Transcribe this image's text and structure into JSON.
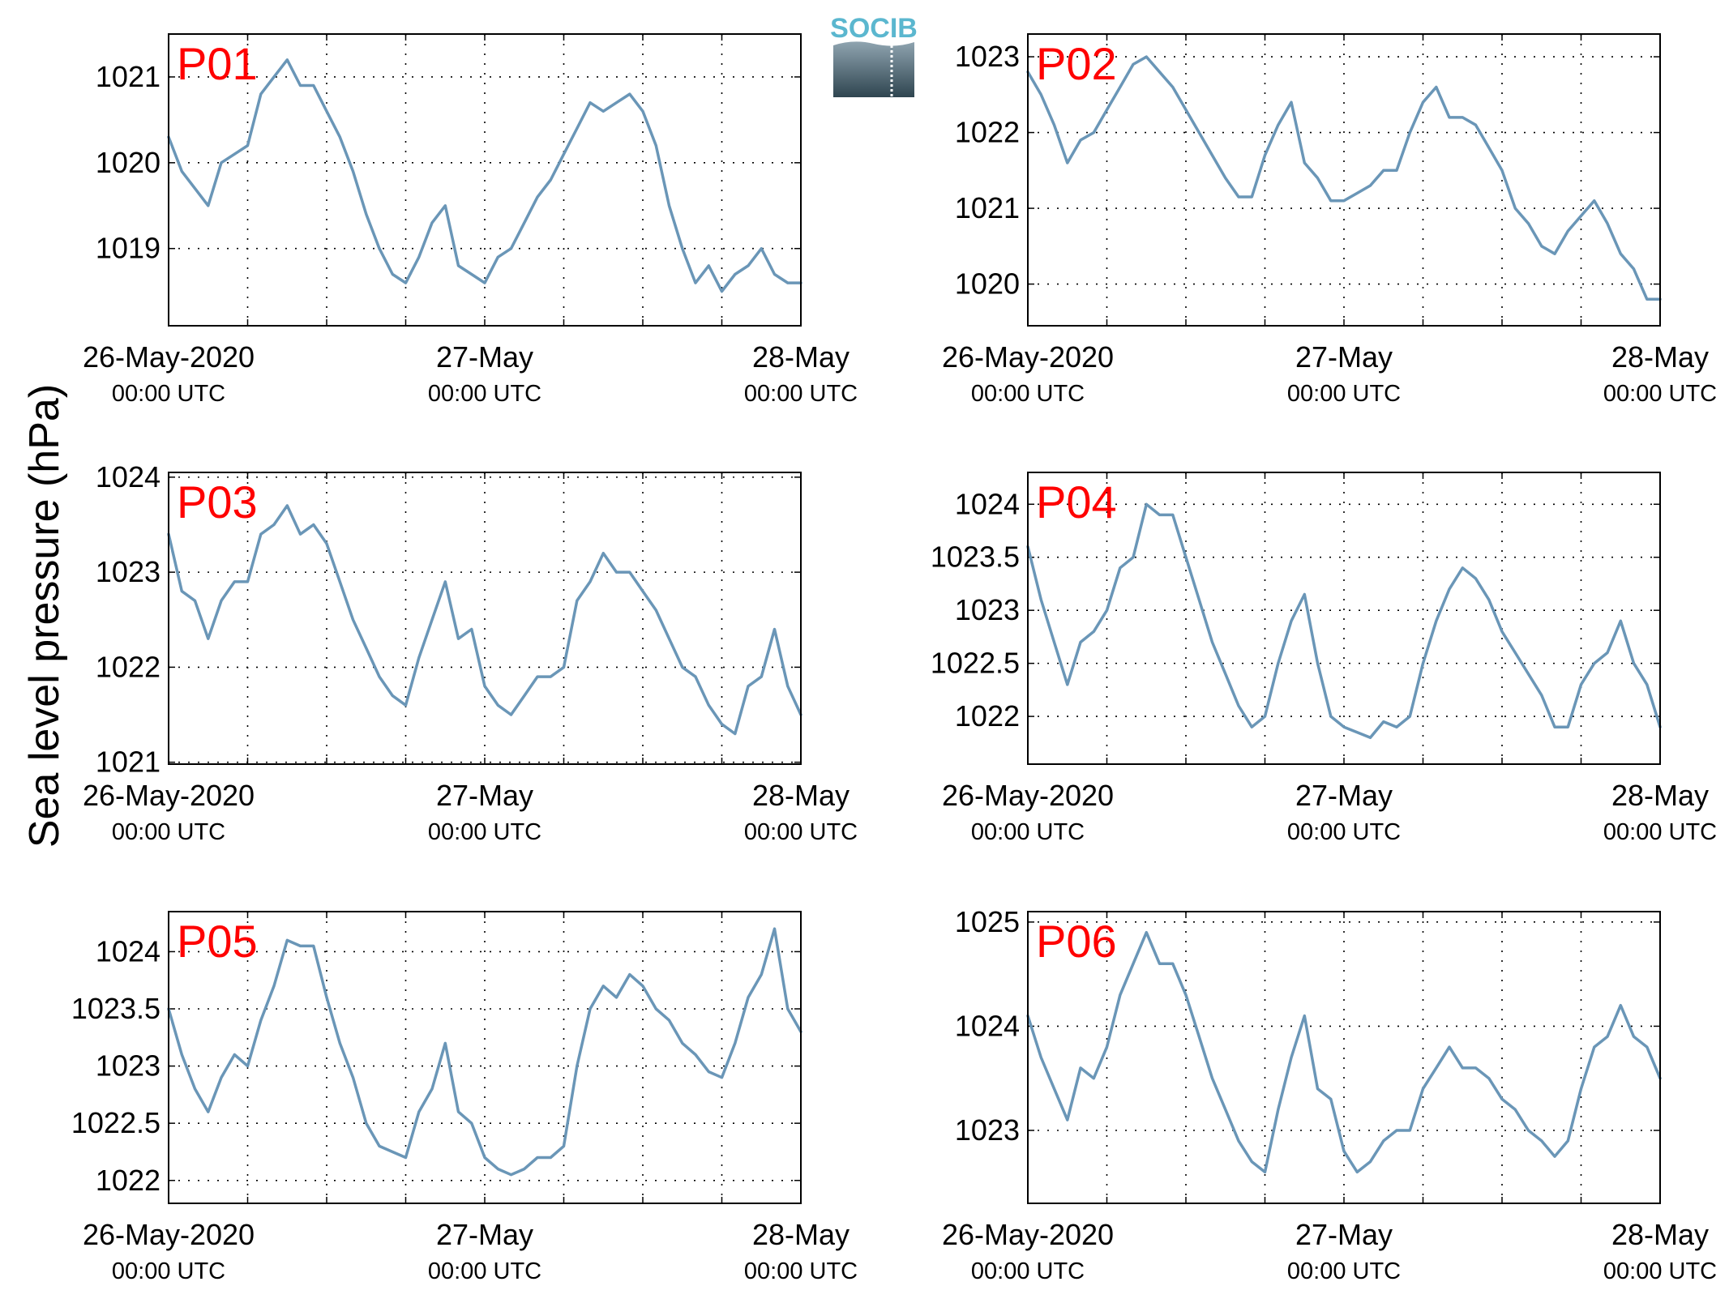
{
  "figure": {
    "ylabel": "Sea level pressure (hPa)",
    "logo": {
      "text": "SOCIB",
      "top_color": "#8fa4b0",
      "bottom_color": "#2f4550",
      "text_color": "#5bb7cf"
    },
    "line_color": "#6a96b7",
    "label_color": "#ff0000"
  },
  "chart_data": [
    {
      "type": "line",
      "label": "P01",
      "x_ticks": [
        {
          "date": "26-May-2020",
          "time": "00:00 UTC"
        },
        {
          "date": "27-May",
          "time": "00:00 UTC"
        },
        {
          "date": "28-May",
          "time": "00:00 UTC"
        }
      ],
      "xlim_hours": [
        0,
        48
      ],
      "ylim": [
        1018.1,
        1021.5
      ],
      "yticks": [
        "1019",
        "1020",
        "1021"
      ],
      "ytick_values": [
        1019,
        1020,
        1021
      ],
      "grid": true,
      "x_hours": [
        0,
        1,
        2,
        3,
        4,
        5,
        6,
        7,
        8,
        9,
        10,
        11,
        12,
        13,
        14,
        15,
        16,
        17,
        18,
        19,
        20,
        21,
        22,
        23,
        24,
        25,
        26,
        27,
        28,
        29,
        30,
        31,
        32,
        33,
        34,
        35,
        36,
        37,
        38,
        39,
        40,
        41,
        42,
        43,
        44,
        45,
        46,
        47,
        48
      ],
      "values": [
        1020.3,
        1019.9,
        1019.7,
        1019.5,
        1020.0,
        1020.1,
        1020.2,
        1020.8,
        1021.0,
        1021.2,
        1020.9,
        1020.9,
        1020.6,
        1020.3,
        1019.9,
        1019.4,
        1019.0,
        1018.7,
        1018.6,
        1018.9,
        1019.3,
        1019.5,
        1018.8,
        1018.7,
        1018.6,
        1018.9,
        1019.0,
        1019.3,
        1019.6,
        1019.8,
        1020.1,
        1020.4,
        1020.7,
        1020.6,
        1020.7,
        1020.8,
        1020.6,
        1020.2,
        1019.5,
        1019.0,
        1018.6,
        1018.8,
        1018.5,
        1018.7,
        1018.8,
        1019.0,
        1018.7,
        1018.6,
        1018.6
      ]
    },
    {
      "type": "line",
      "label": "P02",
      "x_ticks": [
        {
          "date": "26-May-2020",
          "time": "00:00 UTC"
        },
        {
          "date": "27-May",
          "time": "00:00 UTC"
        },
        {
          "date": "28-May",
          "time": "00:00 UTC"
        }
      ],
      "xlim_hours": [
        0,
        48
      ],
      "ylim": [
        1019.45,
        1023.3
      ],
      "yticks": [
        "1020",
        "1021",
        "1022",
        "1023"
      ],
      "ytick_values": [
        1020,
        1021,
        1022,
        1023
      ],
      "grid": true,
      "x_hours": [
        0,
        1,
        2,
        3,
        4,
        5,
        6,
        7,
        8,
        9,
        10,
        11,
        12,
        13,
        14,
        15,
        16,
        17,
        18,
        19,
        20,
        21,
        22,
        23,
        24,
        25,
        26,
        27,
        28,
        29,
        30,
        31,
        32,
        33,
        34,
        35,
        36,
        37,
        38,
        39,
        40,
        41,
        42,
        43,
        44,
        45,
        46,
        47,
        48
      ],
      "values": [
        1022.8,
        1022.5,
        1022.1,
        1021.6,
        1021.9,
        1022.0,
        1022.3,
        1022.6,
        1022.9,
        1023.0,
        1022.8,
        1022.6,
        1022.3,
        1022.0,
        1021.7,
        1021.4,
        1021.15,
        1021.15,
        1021.7,
        1022.1,
        1022.4,
        1021.6,
        1021.4,
        1021.1,
        1021.1,
        1021.2,
        1021.3,
        1021.5,
        1021.5,
        1022.0,
        1022.4,
        1022.6,
        1022.2,
        1022.2,
        1022.1,
        1021.8,
        1021.5,
        1021.0,
        1020.8,
        1020.5,
        1020.4,
        1020.7,
        1020.9,
        1021.1,
        1020.8,
        1020.4,
        1020.2,
        1019.8,
        1019.8
      ]
    },
    {
      "type": "line",
      "label": "P03",
      "x_ticks": [
        {
          "date": "26-May-2020",
          "time": "00:00 UTC"
        },
        {
          "date": "27-May",
          "time": "00:00 UTC"
        },
        {
          "date": "28-May",
          "time": "00:00 UTC"
        }
      ],
      "xlim_hours": [
        0,
        48
      ],
      "ylim": [
        1020.98,
        1024.05
      ],
      "yticks": [
        "1021",
        "1022",
        "1023",
        "1024"
      ],
      "ytick_values": [
        1021,
        1022,
        1023,
        1024
      ],
      "grid": true,
      "x_hours": [
        0,
        1,
        2,
        3,
        4,
        5,
        6,
        7,
        8,
        9,
        10,
        11,
        12,
        13,
        14,
        15,
        16,
        17,
        18,
        19,
        20,
        21,
        22,
        23,
        24,
        25,
        26,
        27,
        28,
        29,
        30,
        31,
        32,
        33,
        34,
        35,
        36,
        37,
        38,
        39,
        40,
        41,
        42,
        43,
        44,
        45,
        46,
        47,
        48
      ],
      "values": [
        1023.4,
        1022.8,
        1022.7,
        1022.3,
        1022.7,
        1022.9,
        1022.9,
        1023.4,
        1023.5,
        1023.7,
        1023.4,
        1023.5,
        1023.3,
        1022.9,
        1022.5,
        1022.2,
        1021.9,
        1021.7,
        1021.6,
        1022.1,
        1022.5,
        1022.9,
        1022.3,
        1022.4,
        1021.8,
        1021.6,
        1021.5,
        1021.7,
        1021.9,
        1021.9,
        1022.0,
        1022.7,
        1022.9,
        1023.2,
        1023.0,
        1023.0,
        1022.8,
        1022.6,
        1022.3,
        1022.0,
        1021.9,
        1021.6,
        1021.4,
        1021.3,
        1021.8,
        1021.9,
        1022.4,
        1021.8,
        1021.5
      ]
    },
    {
      "type": "line",
      "label": "P04",
      "x_ticks": [
        {
          "date": "26-May-2020",
          "time": "00:00 UTC"
        },
        {
          "date": "27-May",
          "time": "00:00 UTC"
        },
        {
          "date": "28-May",
          "time": "00:00 UTC"
        }
      ],
      "xlim_hours": [
        0,
        48
      ],
      "ylim": [
        1021.55,
        1024.3
      ],
      "yticks": [
        "1022",
        "1022.5",
        "1023",
        "1023.5",
        "1024"
      ],
      "ytick_values": [
        1022,
        1022.5,
        1023,
        1023.5,
        1024
      ],
      "grid": true,
      "x_hours": [
        0,
        1,
        2,
        3,
        4,
        5,
        6,
        7,
        8,
        9,
        10,
        11,
        12,
        13,
        14,
        15,
        16,
        17,
        18,
        19,
        20,
        21,
        22,
        23,
        24,
        25,
        26,
        27,
        28,
        29,
        30,
        31,
        32,
        33,
        34,
        35,
        36,
        37,
        38,
        39,
        40,
        41,
        42,
        43,
        44,
        45,
        46,
        47,
        48
      ],
      "values": [
        1023.6,
        1023.1,
        1022.7,
        1022.3,
        1022.7,
        1022.8,
        1023.0,
        1023.4,
        1023.5,
        1024.0,
        1023.9,
        1023.9,
        1023.5,
        1023.1,
        1022.7,
        1022.4,
        1022.1,
        1021.9,
        1022.0,
        1022.5,
        1022.9,
        1023.15,
        1022.5,
        1022.0,
        1021.9,
        1021.85,
        1021.8,
        1021.95,
        1021.9,
        1022.0,
        1022.5,
        1022.9,
        1023.2,
        1023.4,
        1023.3,
        1023.1,
        1022.8,
        1022.6,
        1022.4,
        1022.2,
        1021.9,
        1021.9,
        1022.3,
        1022.5,
        1022.6,
        1022.9,
        1022.5,
        1022.3,
        1021.9
      ]
    },
    {
      "type": "line",
      "label": "P05",
      "x_ticks": [
        {
          "date": "26-May-2020",
          "time": "00:00 UTC"
        },
        {
          "date": "27-May",
          "time": "00:00 UTC"
        },
        {
          "date": "28-May",
          "time": "00:00 UTC"
        }
      ],
      "xlim_hours": [
        0,
        48
      ],
      "ylim": [
        1021.8,
        1024.35
      ],
      "yticks": [
        "1022",
        "1022.5",
        "1023",
        "1023.5",
        "1024"
      ],
      "ytick_values": [
        1022,
        1022.5,
        1023,
        1023.5,
        1024
      ],
      "grid": true,
      "x_hours": [
        0,
        1,
        2,
        3,
        4,
        5,
        6,
        7,
        8,
        9,
        10,
        11,
        12,
        13,
        14,
        15,
        16,
        17,
        18,
        19,
        20,
        21,
        22,
        23,
        24,
        25,
        26,
        27,
        28,
        29,
        30,
        31,
        32,
        33,
        34,
        35,
        36,
        37,
        38,
        39,
        40,
        41,
        42,
        43,
        44,
        45,
        46,
        47,
        48
      ],
      "values": [
        1023.5,
        1023.1,
        1022.8,
        1022.6,
        1022.9,
        1023.1,
        1023.0,
        1023.4,
        1023.7,
        1024.1,
        1024.05,
        1024.05,
        1023.6,
        1023.2,
        1022.9,
        1022.5,
        1022.3,
        1022.25,
        1022.2,
        1022.6,
        1022.8,
        1023.2,
        1022.6,
        1022.5,
        1022.2,
        1022.1,
        1022.05,
        1022.1,
        1022.2,
        1022.2,
        1022.3,
        1023.0,
        1023.5,
        1023.7,
        1023.6,
        1023.8,
        1023.7,
        1023.5,
        1023.4,
        1023.2,
        1023.1,
        1022.95,
        1022.9,
        1023.2,
        1023.6,
        1023.8,
        1024.2,
        1023.5,
        1023.3
      ]
    },
    {
      "type": "line",
      "label": "P06",
      "x_ticks": [
        {
          "date": "26-May-2020",
          "time": "00:00 UTC"
        },
        {
          "date": "27-May",
          "time": "00:00 UTC"
        },
        {
          "date": "28-May",
          "time": "00:00 UTC"
        }
      ],
      "xlim_hours": [
        0,
        48
      ],
      "ylim": [
        1022.3,
        1025.1
      ],
      "yticks": [
        "1023",
        "1024",
        "1025"
      ],
      "ytick_values": [
        1023,
        1024,
        1025
      ],
      "grid": true,
      "x_hours": [
        0,
        1,
        2,
        3,
        4,
        5,
        6,
        7,
        8,
        9,
        10,
        11,
        12,
        13,
        14,
        15,
        16,
        17,
        18,
        19,
        20,
        21,
        22,
        23,
        24,
        25,
        26,
        27,
        28,
        29,
        30,
        31,
        32,
        33,
        34,
        35,
        36,
        37,
        38,
        39,
        40,
        41,
        42,
        43,
        44,
        45,
        46,
        47,
        48
      ],
      "values": [
        1024.1,
        1023.7,
        1023.4,
        1023.1,
        1023.6,
        1023.5,
        1023.8,
        1024.3,
        1024.6,
        1024.9,
        1024.6,
        1024.6,
        1024.3,
        1023.9,
        1023.5,
        1023.2,
        1022.9,
        1022.7,
        1022.6,
        1023.2,
        1023.7,
        1024.1,
        1023.4,
        1023.3,
        1022.8,
        1022.6,
        1022.7,
        1022.9,
        1023.0,
        1023.0,
        1023.4,
        1023.6,
        1023.8,
        1023.6,
        1023.6,
        1023.5,
        1023.3,
        1023.2,
        1023.0,
        1022.9,
        1022.75,
        1022.9,
        1023.4,
        1023.8,
        1023.9,
        1024.2,
        1023.9,
        1023.8,
        1023.5
      ]
    }
  ]
}
